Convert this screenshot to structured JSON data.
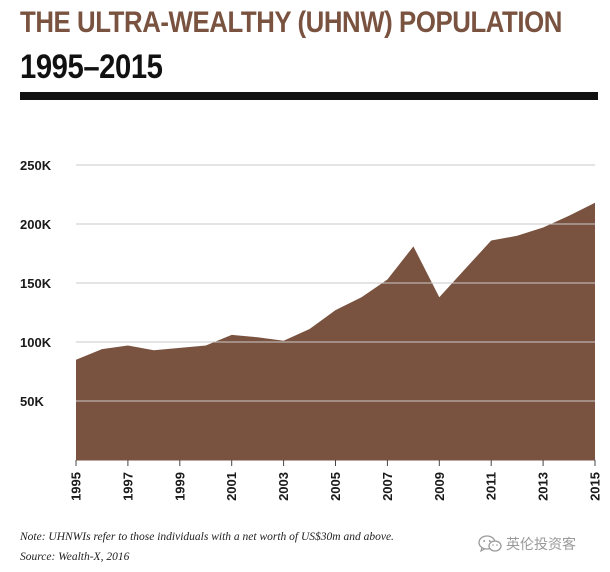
{
  "title": "THE ULTRA-WEALTHY (UHNW) POPULATION",
  "subtitle": "1995–2015",
  "colors": {
    "title": "#7a5340",
    "subtitle": "#111111",
    "rule": "#111111",
    "area": "#7a5340",
    "grid": "#c9c9c9",
    "axis_text": "#1a1a1a"
  },
  "chart_data": {
    "type": "area",
    "title": "THE ULTRA-WEALTHY (UHNW) POPULATION 1995–2015",
    "xlabel": "",
    "ylabel": "",
    "ylim": [
      0,
      250000
    ],
    "xlim": [
      1995,
      2015
    ],
    "x": [
      1995,
      1996,
      1997,
      1998,
      1999,
      2000,
      2001,
      2002,
      2003,
      2004,
      2005,
      2006,
      2007,
      2008,
      2009,
      2010,
      2011,
      2012,
      2013,
      2014,
      2015
    ],
    "values": [
      85000,
      94000,
      97000,
      93000,
      95000,
      97000,
      106000,
      104000,
      101000,
      111000,
      127000,
      138000,
      153000,
      181000,
      138000,
      162000,
      186000,
      190000,
      197000,
      207000,
      218000
    ],
    "y_ticks": [
      50000,
      100000,
      150000,
      200000,
      250000
    ],
    "y_tick_labels": [
      "50K",
      "100K",
      "150K",
      "200K",
      "250K"
    ],
    "x_ticks": [
      1995,
      1997,
      1999,
      2001,
      2003,
      2005,
      2007,
      2009,
      2011,
      2013,
      2015
    ],
    "x_tick_labels": [
      "1995",
      "1997",
      "1999",
      "2001",
      "2003",
      "2005",
      "2007",
      "2009",
      "2011",
      "2013",
      "2015"
    ],
    "grid": true
  },
  "notes": {
    "note": "Note: UHNWIs refer to those individuals with a net worth of US$30m and above.",
    "source": "Source: Wealth-X, 2016"
  },
  "watermark": {
    "icon": "wechat-icon",
    "text": "英伦投资客"
  }
}
